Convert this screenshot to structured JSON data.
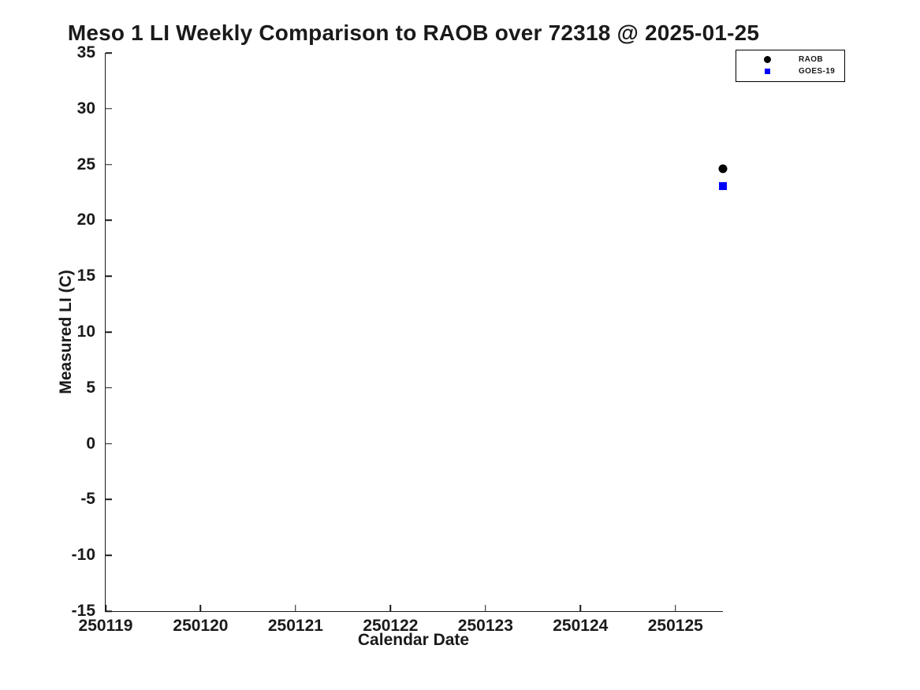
{
  "title": "Meso 1 LI Weekly Comparison to RAOB over 72318 @ 2025-01-25",
  "axes": {
    "xlabel": "Calendar Date",
    "ylabel": "Measured LI (C)"
  },
  "legend": {
    "items": [
      {
        "label": "RAOB",
        "marker": "circle",
        "color": "#000000"
      },
      {
        "label": "GOES-19",
        "marker": "square",
        "color": "#0000ff"
      }
    ]
  },
  "colors": {
    "axis": "#1a1a1a",
    "raob_marker": "#000000",
    "goes19_marker": "#0000ff",
    "background": "#ffffff"
  },
  "chart_data": {
    "type": "scatter",
    "title": "Meso 1 LI Weekly Comparison to RAOB over 72318 @ 2025-01-25",
    "xlabel": "Calendar Date",
    "ylabel": "Measured LI (C)",
    "xlim": [
      250119,
      250125.5
    ],
    "ylim": [
      -15,
      35
    ],
    "xticks": [
      250119,
      250120,
      250121,
      250122,
      250123,
      250124,
      250125
    ],
    "yticks": [
      35,
      30,
      25,
      20,
      15,
      10,
      5,
      0,
      -5,
      -10,
      -15
    ],
    "grid": false,
    "legend_position": "upper-right",
    "series": [
      {
        "name": "RAOB",
        "marker": "circle",
        "color": "#000000",
        "points": [
          {
            "x": 250125.5,
            "y": 24.6
          }
        ]
      },
      {
        "name": "GOES-19",
        "marker": "square",
        "color": "#0000ff",
        "points": [
          {
            "x": 250125.5,
            "y": 23.1
          }
        ]
      }
    ]
  }
}
